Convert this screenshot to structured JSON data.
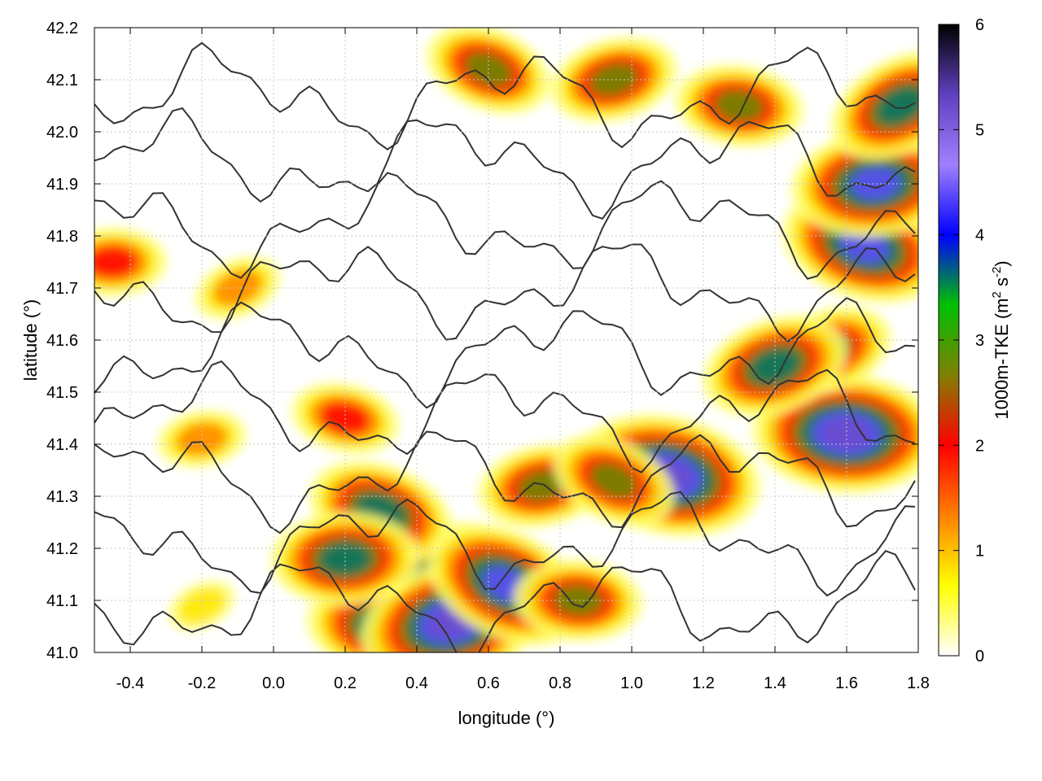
{
  "chart_data": {
    "type": "heatmap",
    "title": "",
    "xlabel": "longitude (°)",
    "ylabel": "latitude (°)",
    "xlim": [
      -0.5,
      1.8
    ],
    "ylim": [
      41.0,
      42.2
    ],
    "xticks": [
      -0.4,
      -0.2,
      0.0,
      0.2,
      0.4,
      0.6,
      0.8,
      1.0,
      1.2,
      1.4,
      1.6,
      1.8
    ],
    "xtick_labels": [
      "-0.4",
      "-0.2",
      "0.0",
      "0.2",
      "0.4",
      "0.6",
      "0.8",
      "1.0",
      "1.2",
      "1.4",
      "1.6",
      "1.8"
    ],
    "yticks": [
      41.0,
      41.1,
      41.2,
      41.3,
      41.4,
      41.5,
      41.6,
      41.7,
      41.8,
      41.9,
      42.0,
      42.1,
      42.2
    ],
    "ytick_labels": [
      "41.0",
      "41.1",
      "41.2",
      "41.3",
      "41.4",
      "41.5",
      "41.6",
      "41.7",
      "41.8",
      "41.9",
      "42.0",
      "42.1",
      "42.2"
    ],
    "grid": true,
    "colorbar": {
      "label_main": "1000m-TKE (m",
      "label_sup1": "2",
      "label_mid": " s",
      "label_sup2": "-2",
      "label_end": ")",
      "range": [
        0,
        6
      ],
      "ticks": [
        0,
        1,
        2,
        3,
        4,
        5,
        6
      ],
      "tick_labels": [
        "0",
        "1",
        "2",
        "3",
        "4",
        "5",
        "6"
      ],
      "colors": [
        "#ffffff",
        "#ffff00",
        "#ff8000",
        "#ff0000",
        "#808000",
        "#00c000",
        "#0000ff",
        "#a080ff",
        "#6040c0",
        "#000000"
      ]
    },
    "hotspots": [
      {
        "lon": 0.45,
        "lat": 41.13,
        "tke": 4.5
      },
      {
        "lon": 0.3,
        "lat": 41.05,
        "tke": 4.2
      },
      {
        "lon": 0.5,
        "lat": 41.06,
        "tke": 5.5
      },
      {
        "lon": 0.3,
        "lat": 41.27,
        "tke": 4.0
      },
      {
        "lon": 0.2,
        "lat": 41.18,
        "tke": 3.6
      },
      {
        "lon": -0.2,
        "lat": 41.09,
        "tke": 1.2
      },
      {
        "lon": 1.1,
        "lat": 41.34,
        "tke": 5.8
      },
      {
        "lon": 0.75,
        "lat": 41.32,
        "tke": 3.3
      },
      {
        "lon": 0.95,
        "lat": 41.33,
        "tke": 3.0
      },
      {
        "lon": 1.6,
        "lat": 41.42,
        "tke": 5.6
      },
      {
        "lon": 1.55,
        "lat": 41.58,
        "tke": 3.4
      },
      {
        "lon": 1.65,
        "lat": 41.78,
        "tke": 5.0
      },
      {
        "lon": 1.68,
        "lat": 41.9,
        "tke": 4.8
      },
      {
        "lon": 1.75,
        "lat": 42.05,
        "tke": 3.8
      },
      {
        "lon": 1.3,
        "lat": 42.05,
        "tke": 3.5
      },
      {
        "lon": 0.95,
        "lat": 42.1,
        "tke": 3.2
      },
      {
        "lon": 0.6,
        "lat": 42.12,
        "tke": 2.8
      },
      {
        "lon": -0.45,
        "lat": 41.75,
        "tke": 2.6
      },
      {
        "lon": -0.1,
        "lat": 41.7,
        "tke": 1.4
      },
      {
        "lon": 0.2,
        "lat": 41.45,
        "tke": 2.4
      },
      {
        "lon": -0.2,
        "lat": 41.41,
        "tke": 1.6
      },
      {
        "lon": 0.65,
        "lat": 41.13,
        "tke": 4.4
      },
      {
        "lon": 0.85,
        "lat": 41.1,
        "tke": 3.2
      },
      {
        "lon": 1.4,
        "lat": 41.55,
        "tke": 3.6
      }
    ]
  }
}
